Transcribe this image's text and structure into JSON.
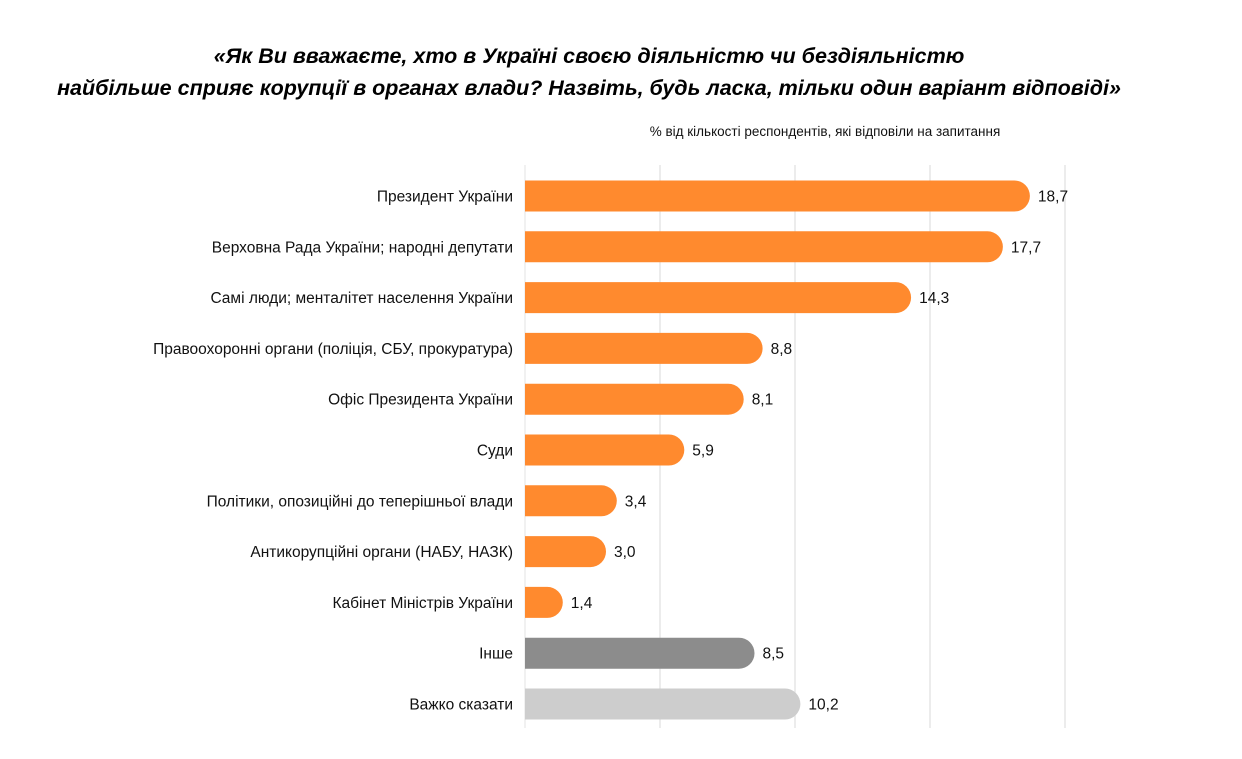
{
  "title_line1": "«Як Ви вважаєте, хто в Україні своєю діяльністю чи бездіяльністю",
  "title_line2": "найбільше сприяє корупції в органах влади? Назвіть, будь ласка, тільки один варіант відповіді»",
  "subtitle": "% від кількості респондентів, які відповіли на запитання",
  "colors": {
    "main": "#FF8A2E",
    "other": "#8C8C8C",
    "hard_to_say": "#CDCDCD",
    "grid": "#D9D9D9"
  },
  "chart_data": {
    "type": "bar",
    "orientation": "horizontal",
    "xlim": [
      0,
      20
    ],
    "grid": true,
    "categories": [
      "Президент України",
      "Верховна Рада України; народні депутати",
      "Самі люди; менталітет населення України",
      "Правоохоронні органи (поліція, СБУ, прокуратура)",
      "Офіс Президента України",
      "Суди",
      "Політики, опозиційні до теперішньої влади",
      "Антикорупційні органи (НАБУ, НАЗК)",
      "Кабінет Міністрів України",
      "Інше",
      "Важко сказати"
    ],
    "values": [
      18.7,
      17.7,
      14.3,
      8.8,
      8.1,
      5.9,
      3.4,
      3.0,
      1.4,
      8.5,
      10.2
    ],
    "value_labels": [
      "18,7",
      "17,7",
      "14,3",
      "8,8",
      "8,1",
      "5,9",
      "3,4",
      "3,0",
      "1,4",
      "8,5",
      "10,2"
    ],
    "bar_colors": [
      "main",
      "main",
      "main",
      "main",
      "main",
      "main",
      "main",
      "main",
      "main",
      "other",
      "hard_to_say"
    ]
  }
}
